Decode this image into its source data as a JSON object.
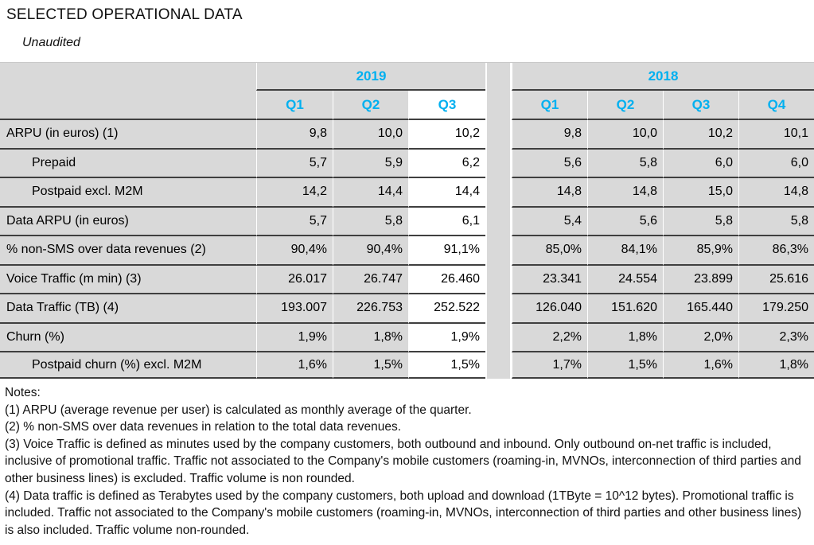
{
  "header": {
    "title": "SELECTED OPERATIONAL DATA",
    "subtitle": "Unaudited"
  },
  "table": {
    "year_groups": [
      {
        "year": "2019",
        "quarters": [
          "Q1",
          "Q2",
          "Q3"
        ]
      },
      {
        "year": "2018",
        "quarters": [
          "Q1",
          "Q2",
          "Q3",
          "Q4"
        ]
      }
    ],
    "highlighted_column": "2019 Q3",
    "rows": [
      {
        "label": "ARPU (in euros) (1)",
        "indent": false,
        "values_2019": [
          "9,8",
          "10,0",
          "10,2"
        ],
        "values_2018": [
          "9,8",
          "10,0",
          "10,2",
          "10,1"
        ]
      },
      {
        "label": "Prepaid",
        "indent": true,
        "values_2019": [
          "5,7",
          "5,9",
          "6,2"
        ],
        "values_2018": [
          "5,6",
          "5,8",
          "6,0",
          "6,0"
        ]
      },
      {
        "label": "Postpaid excl. M2M",
        "indent": true,
        "values_2019": [
          "14,2",
          "14,4",
          "14,4"
        ],
        "values_2018": [
          "14,8",
          "14,8",
          "15,0",
          "14,8"
        ]
      },
      {
        "label": "Data ARPU (in euros)",
        "indent": false,
        "values_2019": [
          "5,7",
          "5,8",
          "6,1"
        ],
        "values_2018": [
          "5,4",
          "5,6",
          "5,8",
          "5,8"
        ]
      },
      {
        "label": "% non-SMS over data revenues (2)",
        "indent": false,
        "values_2019": [
          "90,4%",
          "90,4%",
          "91,1%"
        ],
        "values_2018": [
          "85,0%",
          "84,1%",
          "85,9%",
          "86,3%"
        ]
      },
      {
        "label": "Voice Traffic (m min) (3)",
        "indent": false,
        "values_2019": [
          "26.017",
          "26.747",
          "26.460"
        ],
        "values_2018": [
          "23.341",
          "24.554",
          "23.899",
          "25.616"
        ]
      },
      {
        "label": "Data Traffic (TB) (4)",
        "indent": false,
        "values_2019": [
          "193.007",
          "226.753",
          "252.522"
        ],
        "values_2018": [
          "126.040",
          "151.620",
          "165.440",
          "179.250"
        ]
      },
      {
        "label": "Churn (%)",
        "indent": false,
        "values_2019": [
          "1,9%",
          "1,8%",
          "1,9%"
        ],
        "values_2018": [
          "2,2%",
          "1,8%",
          "2,0%",
          "2,3%"
        ]
      },
      {
        "label": "Postpaid churn (%) excl. M2M",
        "indent": true,
        "values_2019": [
          "1,6%",
          "1,5%",
          "1,5%"
        ],
        "values_2018": [
          "1,7%",
          "1,5%",
          "1,6%",
          "1,8%"
        ]
      }
    ]
  },
  "notes": {
    "heading": "Notes:",
    "items": [
      "(1) ARPU (average revenue per user) is calculated as monthly average of the quarter.",
      "(2) % non-SMS over data revenues in relation to the total data revenues.",
      "(3) Voice Traffic is defined as minutes used by the company customers, both outbound and inbound. Only outbound on-net traffic is included, inclusive of promotional traffic. Traffic not associated to the Company's mobile customers (roaming-in, MVNOs, interconnection of third parties and other business lines) is excluded. Traffic volume is non rounded.",
      "(4) Data traffic is defined as Terabytes used by the company customers, both upload and download (1TByte = 10^12 bytes). Promotional traffic is included. Traffic not associated to the Company's mobile customers (roaming-in, MVNOs, interconnection of third parties and other business lines) is also included. Traffic volume non-rounded."
    ]
  },
  "colors": {
    "accent_cyan": "#00B0F0",
    "cell_fill_gray": "#D9D9D9",
    "highlight_fill": "#FFFFFF",
    "border_dark": "#3F3F3F"
  }
}
